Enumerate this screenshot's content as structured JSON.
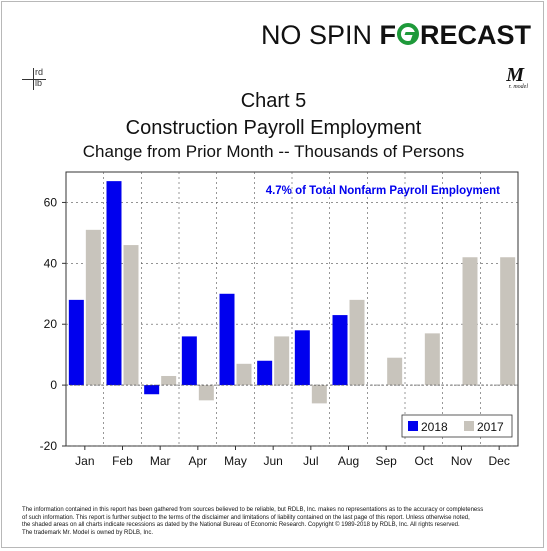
{
  "brand": {
    "no_spin": "NO SPIN",
    "f": "F",
    "recast": "RECAST",
    "accent": "#1e9a3a"
  },
  "logo": {
    "top": "rd",
    "bottom": "lb",
    "mark": "M",
    "mark_sub": "r. model"
  },
  "chart_data": {
    "type": "bar",
    "title": "Chart 5",
    "subtitle": "Construction Payroll Employment",
    "subtitle2": "Change from Prior Month -- Thousands of Persons",
    "annotation": "4.7% of Total Nonfarm Payroll Employment",
    "categories": [
      "Jan",
      "Feb",
      "Mar",
      "Apr",
      "May",
      "Jun",
      "Jul",
      "Aug",
      "Sep",
      "Oct",
      "Nov",
      "Dec"
    ],
    "series": [
      {
        "name": "2018",
        "color": "#0000ee",
        "values": [
          28,
          67,
          -3,
          16,
          30,
          8,
          18,
          23,
          null,
          null,
          null,
          null
        ]
      },
      {
        "name": "2017",
        "color": "#c8c4bc",
        "values": [
          51,
          46,
          3,
          -5,
          7,
          16,
          -6,
          28,
          9,
          17,
          42,
          42
        ]
      }
    ],
    "yticks": [
      -20,
      0,
      20,
      40,
      60
    ],
    "ylim": [
      -20,
      70
    ],
    "grid": true,
    "legend": "bottom-right"
  },
  "footer": {
    "lines": [
      "The information contained in this report has been gathered from sources believed to be reliable, but RDLB, Inc. makes no representations as to the accuracy or completeness",
      "of such information. This report is further subject to the terms of the disclaimer and limitations of liability contained on the last page of this report. Unless otherwise noted,",
      "the shaded areas on all charts indicate recessions as dated by the National Bureau of Economic Research. Copyright © 1989-2018 by RDLB, Inc. All rights reserved.",
      "The trademark Mr. Model is owned by RDLB, Inc."
    ]
  }
}
